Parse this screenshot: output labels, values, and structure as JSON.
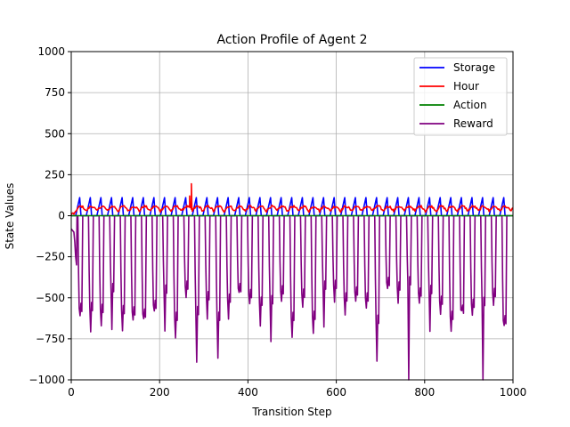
{
  "chart_data": {
    "type": "line",
    "title": "Action Profile of Agent 2",
    "xlabel": "Transition Step",
    "ylabel": "State Values",
    "xlim": [
      0,
      1000
    ],
    "ylim": [
      -1000,
      1000
    ],
    "xticks": [
      0,
      200,
      400,
      600,
      800,
      1000
    ],
    "yticks": [
      1000,
      750,
      500,
      250,
      0,
      -250,
      -500,
      -750,
      -1000
    ],
    "xtick_labels": [
      "0",
      "200",
      "400",
      "600",
      "800",
      "1000"
    ],
    "ytick_labels": [
      "1000",
      "750",
      "500",
      "250",
      "0",
      "−250",
      "−500",
      "−750",
      "−1000"
    ],
    "grid": true,
    "legend_position": "top-right",
    "series": [
      {
        "name": "Storage",
        "color": "#0000ff",
        "pattern": "sawtooth",
        "period": 24,
        "start": 10,
        "min": 0,
        "max": 110
      },
      {
        "name": "Hour",
        "color": "#ff0000",
        "pattern": "noisy-periodic",
        "period": 24,
        "start": 10,
        "min": 5,
        "max": 70,
        "spikes": [
          [
            272,
            195
          ],
          [
            268,
            120
          ]
        ]
      },
      {
        "name": "Action",
        "color": "#008000",
        "pattern": "constant",
        "value": 0
      },
      {
        "name": "Reward",
        "color": "#800080",
        "pattern": "periodic-negative",
        "period": 24,
        "start": 10,
        "max": 0,
        "trough_min": -1000,
        "typical_trough": [
          -400,
          -650
        ]
      }
    ]
  }
}
